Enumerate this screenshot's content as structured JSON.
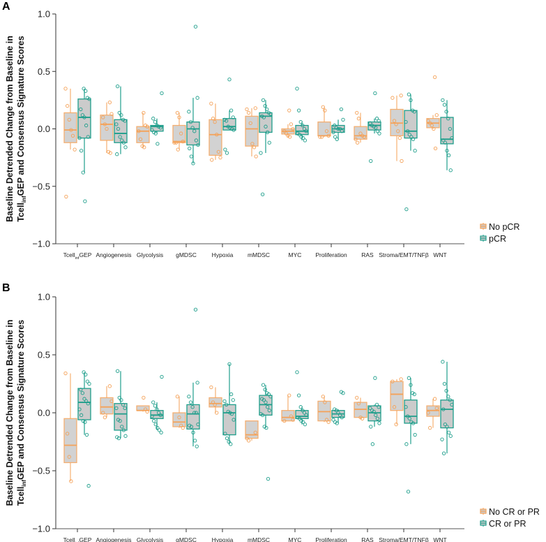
{
  "chart_data": [
    {
      "type": "box",
      "panel_label": "A",
      "ylabel": [
        {
          "text": "Baseline Detrended Change from Baseline in"
        },
        {
          "text": "Tcell",
          "sub": "inf",
          "suffix": "GEP and Consensus Signature Scores"
        }
      ],
      "ylim": [
        -1.0,
        1.0
      ],
      "yticks": [
        "1.0",
        "0.5",
        "0.0",
        "−0.5",
        "−1.0"
      ],
      "ytick_values": [
        1.0,
        0.5,
        0.0,
        -0.5,
        -1.0
      ],
      "categories": [
        {
          "text": "Tcell",
          "sub": "inf",
          "suffix": "GEP"
        },
        {
          "text": "Angiogenesis"
        },
        {
          "text": "Glycolysis"
        },
        {
          "text": "gMDSC"
        },
        {
          "text": "Hypoxia"
        },
        {
          "text": "mMDSC"
        },
        {
          "text": "MYC"
        },
        {
          "text": "Proliferation"
        },
        {
          "text": "RAS"
        },
        {
          "text": "Stroma/EMT/TNFβ"
        },
        {
          "text": "WNT"
        }
      ],
      "legend_position": "right-bottom",
      "series": [
        {
          "name": "No pCR",
          "color": "#F4A259",
          "boxes": [
            {
              "q1": -0.12,
              "median": -0.01,
              "q3": 0.14,
              "points": [
                0.35,
                0.2,
                0.08,
                -0.01,
                -0.06,
                -0.18,
                -0.59
              ]
            },
            {
              "q1": -0.1,
              "median": 0.04,
              "q3": 0.12,
              "points": [
                0.23,
                0.13,
                0.1,
                0.04,
                0.0,
                -0.2,
                -0.21
              ]
            },
            {
              "q1": -0.12,
              "median": -0.02,
              "q3": 0.02,
              "points": [
                0.14,
                0.03,
                0.02,
                -0.02,
                -0.09,
                -0.15,
                -0.16
              ]
            },
            {
              "q1": -0.12,
              "median": -0.11,
              "q3": 0.03,
              "points": [
                0.14,
                0.1,
                -0.04,
                -0.11,
                -0.12,
                -0.12,
                -0.18
              ]
            },
            {
              "q1": -0.23,
              "median": -0.05,
              "q3": 0.08,
              "points": [
                0.22,
                0.09,
                0.06,
                -0.05,
                -0.2,
                -0.25,
                -0.27
              ]
            },
            {
              "q1": -0.15,
              "median": 0.0,
              "q3": 0.11,
              "points": [
                0.18,
                0.17,
                0.14,
                0.05,
                -0.13,
                -0.16,
                -0.24
              ]
            },
            {
              "q1": -0.045,
              "median": -0.02,
              "q3": 0.0,
              "points": [
                0.16,
                0.04,
                0.0,
                -0.02,
                -0.04,
                -0.06,
                -0.07
              ]
            },
            {
              "q1": -0.06,
              "median": -0.06,
              "q3": 0.06,
              "points": [
                0.19,
                0.16,
                -0.02,
                -0.06,
                -0.07,
                -0.07
              ]
            },
            {
              "q1": -0.09,
              "median": -0.06,
              "q3": 0.02,
              "points": [
                0.14,
                0.09,
                -0.04,
                -0.06,
                -0.07,
                -0.09,
                -0.12
              ]
            },
            {
              "q1": -0.06,
              "median": 0.05,
              "q3": 0.17,
              "points": [
                0.29,
                0.27,
                0.07,
                0.04,
                -0.02,
                -0.08,
                -0.28
              ]
            },
            {
              "q1": 0.01,
              "median": 0.05,
              "q3": 0.09,
              "points": [
                0.45,
                0.12,
                0.07,
                0.05,
                0.03,
                0.0,
                -0.17
              ]
            }
          ]
        },
        {
          "name": "pCR",
          "color": "#1E9E8B",
          "boxes": [
            {
              "q1": -0.08,
              "median": 0.1,
              "q3": 0.26,
              "points": [
                0.35,
                0.33,
                0.27,
                0.26,
                0.17,
                0.12,
                0.1,
                0.03,
                -0.07,
                -0.08,
                -0.19,
                -0.38,
                -0.63
              ]
            },
            {
              "q1": -0.12,
              "median": -0.04,
              "q3": 0.08,
              "points": [
                0.37,
                0.14,
                0.12,
                0.08,
                0.07,
                0.04,
                0.0,
                -0.07,
                -0.1,
                -0.12,
                -0.16,
                -0.22
              ]
            },
            {
              "q1": -0.02,
              "median": 0.02,
              "q3": 0.03,
              "points": [
                0.31,
                0.09,
                0.06,
                0.03,
                0.02,
                0.01,
                -0.01,
                -0.03,
                -0.04,
                -0.13
              ]
            },
            {
              "q1": -0.14,
              "median": 0.0,
              "q3": 0.06,
              "points": [
                0.89,
                0.27,
                0.15,
                0.06,
                0.01,
                -0.02,
                -0.1,
                -0.14,
                -0.17,
                -0.24,
                -0.3
              ]
            },
            {
              "q1": -0.01,
              "median": 0.02,
              "q3": 0.09,
              "points": [
                0.43,
                0.16,
                0.1,
                0.08,
                0.07,
                0.02,
                0.01,
                0.0,
                -0.01,
                -0.18,
                -0.21
              ]
            },
            {
              "q1": -0.03,
              "median": 0.11,
              "q3": 0.14,
              "points": [
                0.25,
                0.2,
                0.17,
                0.14,
                0.13,
                0.11,
                0.1,
                0.02,
                -0.03,
                -0.12,
                -0.21,
                -0.57
              ]
            },
            {
              "q1": -0.05,
              "median": -0.02,
              "q3": 0.03,
              "points": [
                0.35,
                0.16,
                0.06,
                0.03,
                0.0,
                -0.02,
                -0.04,
                -0.05,
                -0.07,
                -0.08,
                -0.1
              ]
            },
            {
              "q1": -0.03,
              "median": 0.0,
              "q3": 0.03,
              "points": [
                0.17,
                0.08,
                0.03,
                0.01,
                0.0,
                0.0,
                -0.02,
                -0.03,
                -0.07,
                -0.09
              ]
            },
            {
              "q1": -0.01,
              "median": 0.03,
              "q3": 0.06,
              "points": [
                0.31,
                0.09,
                0.07,
                0.05,
                0.03,
                0.02,
                0.01,
                -0.02,
                -0.04,
                -0.28
              ]
            },
            {
              "q1": -0.08,
              "median": -0.02,
              "q3": 0.16,
              "points": [
                0.3,
                0.25,
                0.16,
                0.15,
                0.06,
                -0.02,
                -0.05,
                -0.07,
                -0.09,
                -0.19,
                -0.7
              ]
            },
            {
              "q1": -0.13,
              "median": -0.09,
              "q3": 0.1,
              "points": [
                0.25,
                0.21,
                0.15,
                0.09,
                0.0,
                -0.08,
                -0.1,
                -0.12,
                -0.19,
                -0.23,
                -0.36
              ]
            }
          ]
        }
      ]
    },
    {
      "type": "box",
      "panel_label": "B",
      "ylabel": [
        {
          "text": "Baseline Detrended Change from Baseline in"
        },
        {
          "text": "Tcell",
          "sub": "inf",
          "suffix": "GEP and Consensus Signature Scores"
        }
      ],
      "ylim": [
        -1.0,
        1.0
      ],
      "yticks": [
        "1.0",
        "0.5",
        "0.0",
        "−0.5",
        "−1.0"
      ],
      "ytick_values": [
        1.0,
        0.5,
        0.0,
        -0.5,
        -1.0
      ],
      "categories": [
        {
          "text": "Tcell",
          "sub": "inf",
          "suffix": "GEP"
        },
        {
          "text": "Angiogenesis"
        },
        {
          "text": "Glycolysis"
        },
        {
          "text": "gMDSC"
        },
        {
          "text": "Hypoxia"
        },
        {
          "text": "mMDSC"
        },
        {
          "text": "MYC"
        },
        {
          "text": "Proliferation"
        },
        {
          "text": "RAS"
        },
        {
          "text": "Stroma/EMT/TNFβ"
        },
        {
          "text": "WNT"
        }
      ],
      "legend_position": "right-bottom",
      "series": [
        {
          "name": "No CR or PR",
          "color": "#F4A259",
          "boxes": [
            {
              "q1": -0.43,
              "median": -0.28,
              "q3": -0.05,
              "points": [
                0.34,
                -0.18,
                -0.38,
                -0.59
              ]
            },
            {
              "q1": -0.01,
              "median": 0.05,
              "q3": 0.13,
              "points": [
                0.23,
                0.1,
                0.0,
                -0.04
              ]
            },
            {
              "q1": 0.02,
              "median": 0.02,
              "q3": 0.06,
              "points": [
                0.13,
                0.03,
                0.01
              ]
            },
            {
              "q1": -0.12,
              "median": -0.08,
              "q3": 0.0,
              "points": [
                0.14,
                -0.04,
                -0.11,
                -0.13
              ]
            },
            {
              "q1": 0.05,
              "median": 0.08,
              "q3": 0.13,
              "points": [
                0.22,
                0.09,
                0.07,
                0.0
              ]
            },
            {
              "q1": -0.22,
              "median": -0.19,
              "q3": -0.07,
              "points": [
                -0.17,
                -0.22,
                -0.24
              ]
            },
            {
              "q1": -0.07,
              "median": -0.04,
              "q3": 0.02,
              "points": [
                0.15,
                -0.03,
                -0.06,
                -0.07
              ]
            },
            {
              "q1": -0.07,
              "median": 0.01,
              "q3": 0.1,
              "points": [
                0.14,
                0.09,
                -0.06,
                -0.08
              ]
            },
            {
              "q1": -0.04,
              "median": 0.03,
              "q3": 0.09,
              "points": [
                0.13,
                0.08,
                -0.04,
                -0.05
              ]
            },
            {
              "q1": 0.02,
              "median": 0.16,
              "q3": 0.27,
              "points": [
                0.29,
                0.27,
                0.05,
                -0.1
              ]
            },
            {
              "q1": -0.03,
              "median": 0.02,
              "q3": 0.06,
              "points": [
                0.12,
                0.04,
                0.0,
                -0.13
              ]
            }
          ]
        },
        {
          "name": "CR or PR",
          "color": "#1E9E8B",
          "boxes": [
            {
              "q1": -0.06,
              "median": 0.09,
              "q3": 0.21,
              "points": [
                0.35,
                0.33,
                0.27,
                0.25,
                0.2,
                0.17,
                0.12,
                0.1,
                0.08,
                0.03,
                -0.02,
                -0.07,
                -0.08,
                -0.19,
                -0.63
              ]
            },
            {
              "q1": -0.15,
              "median": -0.01,
              "q3": 0.08,
              "points": [
                0.36,
                0.13,
                0.11,
                0.07,
                0.04,
                0.04,
                -0.06,
                -0.07,
                -0.12,
                -0.15,
                -0.2,
                -0.21,
                -0.22
              ]
            },
            {
              "q1": -0.05,
              "median": -0.02,
              "q3": 0.02,
              "points": [
                0.31,
                0.09,
                0.06,
                0.03,
                0.0,
                -0.02,
                -0.03,
                -0.07,
                -0.1,
                -0.13,
                -0.15,
                -0.17
              ]
            },
            {
              "q1": -0.14,
              "median": -0.01,
              "q3": 0.07,
              "points": [
                0.89,
                0.26,
                0.14,
                0.09,
                0.05,
                0.0,
                0.0,
                -0.1,
                -0.11,
                -0.12,
                -0.17,
                -0.24,
                -0.29
              ]
            },
            {
              "q1": -0.19,
              "median": 0.0,
              "q3": 0.07,
              "points": [
                0.42,
                0.16,
                0.11,
                0.1,
                0.07,
                0.01,
                0.0,
                -0.01,
                -0.06,
                -0.18,
                -0.22,
                -0.25,
                -0.27
              ]
            },
            {
              "q1": -0.02,
              "median": 0.07,
              "q3": 0.15,
              "points": [
                0.24,
                0.2,
                0.17,
                0.16,
                0.14,
                0.12,
                0.11,
                0.09,
                0.05,
                0.02,
                -0.01,
                -0.02,
                -0.12,
                -0.13,
                -0.57
              ]
            },
            {
              "q1": -0.05,
              "median": -0.03,
              "q3": 0.02,
              "points": [
                0.35,
                0.15,
                0.05,
                0.02,
                0.0,
                -0.02,
                -0.04,
                -0.05,
                -0.07,
                -0.08,
                -0.1
              ]
            },
            {
              "q1": -0.04,
              "median": -0.01,
              "q3": 0.02,
              "points": [
                0.18,
                0.17,
                0.03,
                0.02,
                0.0,
                -0.02,
                -0.04,
                -0.06,
                -0.08,
                -0.09
              ]
            },
            {
              "q1": -0.07,
              "median": 0.0,
              "q3": 0.06,
              "points": [
                0.3,
                0.07,
                0.05,
                0.04,
                0.02,
                0.01,
                -0.02,
                -0.05,
                -0.09,
                -0.12,
                -0.27
              ]
            },
            {
              "q1": -0.09,
              "median": -0.03,
              "q3": 0.11,
              "points": [
                0.3,
                0.24,
                0.17,
                0.16,
                0.05,
                -0.03,
                -0.05,
                -0.08,
                -0.09,
                -0.19,
                -0.27,
                -0.68
              ]
            },
            {
              "q1": -0.13,
              "median": 0.03,
              "q3": 0.11,
              "points": [
                0.44,
                0.25,
                0.19,
                0.14,
                0.11,
                0.07,
                0.03,
                -0.1,
                -0.12,
                -0.17,
                -0.2,
                -0.23,
                -0.35
              ]
            }
          ]
        }
      ]
    }
  ]
}
